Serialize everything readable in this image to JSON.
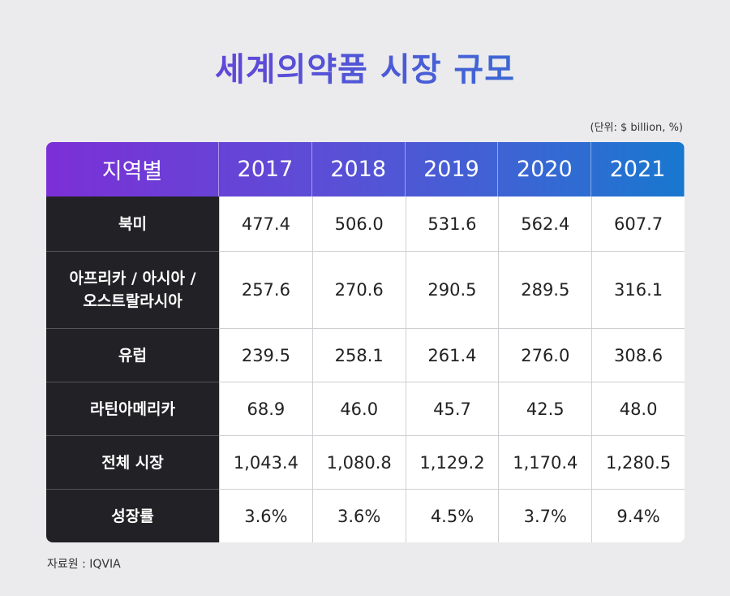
{
  "title": "세계의약품 시장 규모",
  "unit": "(단위: $ billion, %)",
  "table": {
    "corner": "지역별",
    "years": [
      "2017",
      "2018",
      "2019",
      "2020",
      "2021"
    ],
    "rows": [
      {
        "label": "북미",
        "values": [
          "477.4",
          "506.0",
          "531.6",
          "562.4",
          "607.7"
        ]
      },
      {
        "label": "아프리카 / 아시아 / 오스트랄라시아",
        "label_lines": [
          "아프리카 / 아시아 /",
          "오스트랄라시아"
        ],
        "values": [
          "257.6",
          "270.6",
          "290.5",
          "289.5",
          "316.1"
        ]
      },
      {
        "label": "유럽",
        "values": [
          "239.5",
          "258.1",
          "261.4",
          "276.0",
          "308.6"
        ]
      },
      {
        "label": "라틴아메리카",
        "values": [
          "68.9",
          "46.0",
          "45.7",
          "42.5",
          "48.0"
        ]
      },
      {
        "label": "전체 시장",
        "values": [
          "1,043.4",
          "1,080.8",
          "1,129.2",
          "1,170.4",
          "1,280.5"
        ]
      },
      {
        "label": "성장률",
        "values": [
          "3.6%",
          "3.6%",
          "4.5%",
          "3.7%",
          "9.4%"
        ]
      }
    ]
  },
  "source": "자료원 : IQVIA",
  "colors": {
    "header_start": "#7c2fd6",
    "header_end": "#1878cf",
    "label_bg": "#222226",
    "page_bg": "#ebebed"
  }
}
